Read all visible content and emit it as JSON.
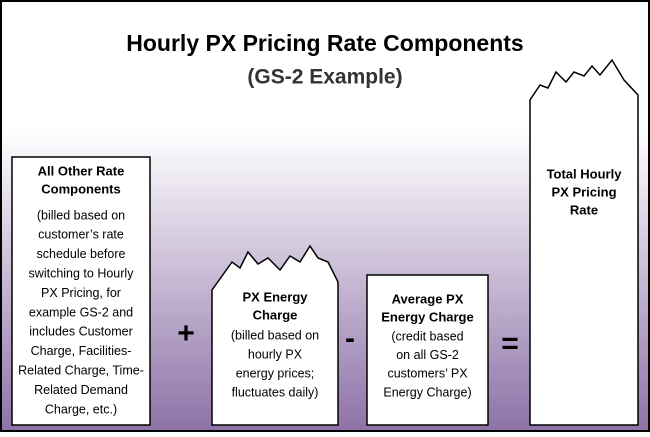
{
  "title": "Hourly PX Pricing Rate Components",
  "subtitle": "(GS-2 Example)",
  "boxes": [
    {
      "heading": [
        "All Other Rate",
        "Components"
      ],
      "body": [
        "(billed based on",
        "customer’s rate",
        "schedule before",
        "switching to Hourly",
        "PX Pricing, for",
        "example GS-2 and",
        "includes Customer",
        "Charge, Facilities-",
        "Related Charge, Time-",
        "Related Demand",
        "Charge, etc.)"
      ]
    },
    {
      "heading": [
        "PX Energy",
        "Charge"
      ],
      "body": [
        "(billed based on",
        "hourly PX",
        "energy prices;",
        "fluctuates daily)"
      ]
    },
    {
      "heading": [
        "Average PX",
        "Energy Charge"
      ],
      "body": [
        "(credit based",
        "on all GS-2",
        "customers’ PX",
        "Energy Charge)"
      ]
    },
    {
      "heading": [
        "Total Hourly",
        "PX Pricing",
        "Rate"
      ],
      "body": []
    }
  ],
  "operators": [
    "+",
    "-",
    "="
  ]
}
